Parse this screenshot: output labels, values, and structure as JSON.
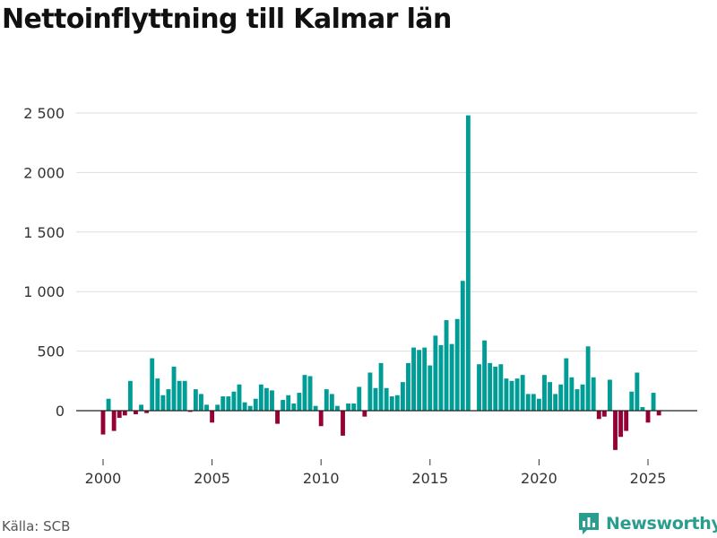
{
  "header": {
    "title": "Nettoinflyttning till Kalmar län"
  },
  "footer": {
    "source": "Källa: SCB",
    "brand": "Newsworthy"
  },
  "colors": {
    "positive": "#009c96",
    "negative": "#970035",
    "grid": "#dddddd",
    "brand": "#2a9d8f"
  },
  "chart_data": {
    "type": "bar",
    "title": "Nettoinflyttning till Kalmar län",
    "xlabel": "",
    "ylabel": "",
    "period": "quarterly",
    "x_start": 2000,
    "ylim": [
      -350,
      2600
    ],
    "yticks": [
      0,
      500,
      1000,
      1500,
      2000,
      2500
    ],
    "ytick_labels": [
      "0",
      "500",
      "1 000",
      "1 500",
      "2 000",
      "2 500"
    ],
    "xticks": [
      2000,
      2005,
      2010,
      2015,
      2020,
      2025
    ],
    "xtick_labels": [
      "2000",
      "2005",
      "2010",
      "2015",
      "2020",
      "2025"
    ],
    "grid": true,
    "values": [
      -200,
      100,
      -170,
      -60,
      -40,
      250,
      -30,
      50,
      -20,
      440,
      270,
      130,
      180,
      370,
      250,
      250,
      -10,
      180,
      140,
      50,
      -100,
      50,
      120,
      120,
      160,
      220,
      70,
      40,
      100,
      220,
      190,
      170,
      -110,
      90,
      130,
      60,
      150,
      300,
      290,
      40,
      -130,
      180,
      140,
      40,
      -210,
      60,
      60,
      200,
      -50,
      320,
      190,
      400,
      190,
      120,
      130,
      240,
      400,
      530,
      510,
      530,
      380,
      630,
      550,
      760,
      560,
      770,
      1090,
      2480,
      null,
      390,
      590,
      400,
      370,
      390,
      270,
      250,
      270,
      300,
      140,
      140,
      100,
      300,
      240,
      140,
      220,
      440,
      280,
      180,
      220,
      540,
      280,
      -70,
      -50,
      260,
      -330,
      -220,
      -170,
      160,
      320,
      30,
      -100,
      150,
      -40
    ]
  }
}
